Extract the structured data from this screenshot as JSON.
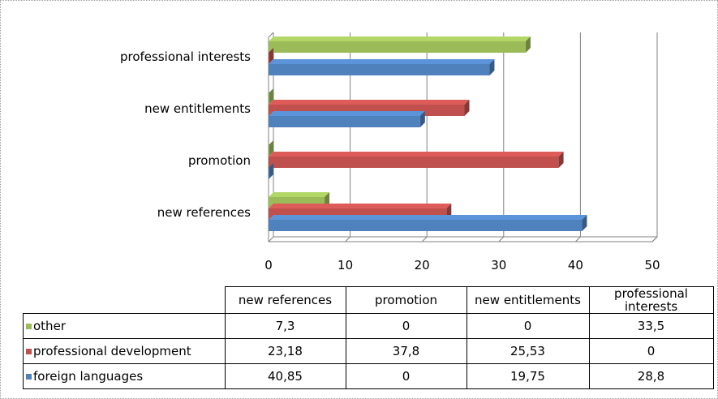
{
  "chart_data": {
    "type": "bar",
    "orientation": "horizontal",
    "categories": [
      "new references",
      "promotion",
      "new entitlements",
      "professional interests"
    ],
    "series": [
      {
        "name": "other",
        "values": [
          7.3,
          0,
          0,
          33.5
        ],
        "color": "#9bbb59"
      },
      {
        "name": "professional development",
        "values": [
          23.18,
          37.8,
          25.53,
          0
        ],
        "color": "#c0504d"
      },
      {
        "name": "foreign languages",
        "values": [
          40.85,
          0,
          19.75,
          28.8
        ],
        "color": "#4f81bd"
      }
    ],
    "xlim": [
      0,
      50
    ],
    "xticks": [
      0,
      10,
      20,
      30,
      40,
      50
    ],
    "grid": true,
    "legend": "data-table",
    "table": {
      "headers": [
        "new references",
        "promotion",
        "new entitlements",
        "professional interests"
      ],
      "rows": [
        {
          "name": "other",
          "cells": [
            "7,3",
            "0",
            "0",
            "33,5"
          ]
        },
        {
          "name": "professional development",
          "cells": [
            "23,18",
            "37,8",
            "25,53",
            "0"
          ]
        },
        {
          "name": "foreign languages",
          "cells": [
            "40,85",
            "0",
            "19,75",
            "28,8"
          ]
        }
      ]
    }
  }
}
